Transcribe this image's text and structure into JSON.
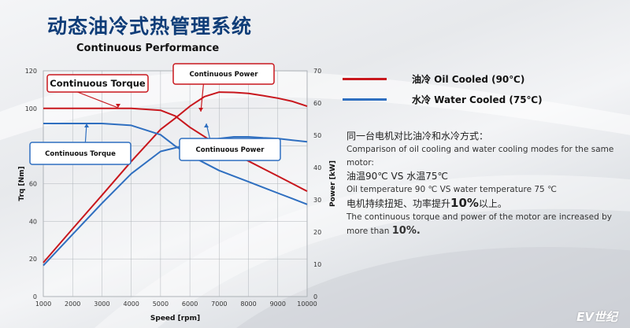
{
  "slide_title": "动态油冷式热管理系统",
  "legend": [
    {
      "label": "油冷 Oil Cooled (90℃)",
      "color": "#c8171d"
    },
    {
      "label": "水冷 Water Cooled (75℃)",
      "color": "#2f6fc0"
    }
  ],
  "description": {
    "line1_zh": "同一台电机对比油冷和水冷方式：",
    "line1_en": "Comparison of oil cooling and water cooling modes for the same motor:",
    "line2_zh": "油温90℃ VS 水温75℃",
    "line2_en": "Oil temperature 90 ℃ VS water temperature 75 ℃",
    "line3_zh_pre": "电机持续扭矩、功率提升",
    "line3_highlight": "10%",
    "line3_zh_post": "以上。",
    "line3_en_pre": "The continuous torque and power of the motor are increased by more than ",
    "line3_en_highlight": "10%."
  },
  "watermark": "EV世纪",
  "colors": {
    "oil": "#c8171d",
    "water": "#2f6fc0",
    "title": "#0f3d78"
  },
  "chart_data": {
    "type": "line",
    "title": "Continuous Performance",
    "xlabel": "Speed [rpm]",
    "ylabel": "Trq [Nm]",
    "y2label": "Power [kW]",
    "xlim": [
      1000,
      10000
    ],
    "ylim": [
      0,
      120
    ],
    "y2lim": [
      0,
      70
    ],
    "x_ticks": [
      1000,
      2000,
      3000,
      4000,
      5000,
      6000,
      7000,
      8000,
      9000,
      10000
    ],
    "y_ticks": [
      0,
      20,
      40,
      60,
      80,
      100,
      120
    ],
    "y2_ticks": [
      0,
      10,
      20,
      30,
      40,
      50,
      60,
      70
    ],
    "grid": true,
    "x": [
      1000,
      2000,
      3000,
      4000,
      5000,
      5500,
      6000,
      6500,
      7000,
      7500,
      8000,
      8500,
      9000,
      9500,
      10000
    ],
    "series": [
      {
        "name": "Continuous Torque",
        "cooling": "oil",
        "axis": "left",
        "color": "#c8171d",
        "values": [
          100,
          100,
          100,
          100,
          99,
          96,
          90,
          85,
          80,
          76,
          72,
          68,
          64,
          60,
          56
        ]
      },
      {
        "name": "Continuous Power",
        "cooling": "oil",
        "axis": "right",
        "color": "#c8171d",
        "values": [
          10.5,
          21,
          31.4,
          41.9,
          51.8,
          55.3,
          59,
          62,
          63.4,
          63.3,
          63,
          62.3,
          61.5,
          60.5,
          59
        ]
      },
      {
        "name": "Continuous Torque",
        "cooling": "water",
        "axis": "left",
        "color": "#2f6fc0",
        "values": [
          92,
          92,
          92,
          91,
          86,
          80,
          75,
          71,
          67,
          64,
          61,
          58,
          55,
          52,
          49
        ]
      },
      {
        "name": "Continuous Power",
        "cooling": "water",
        "axis": "right",
        "color": "#2f6fc0",
        "values": [
          9.6,
          19.3,
          28.9,
          38.1,
          45,
          46.1,
          47.1,
          48.2,
          49,
          49.5,
          49.5,
          49.2,
          49,
          48.5,
          48
        ]
      }
    ],
    "annotations": [
      {
        "text": "Continuous Torque",
        "series": 0
      },
      {
        "text": "Continuous Power",
        "series": 1
      },
      {
        "text": "Continuous Torque",
        "series": 2
      },
      {
        "text": "Continuous Power",
        "series": 3
      }
    ]
  }
}
